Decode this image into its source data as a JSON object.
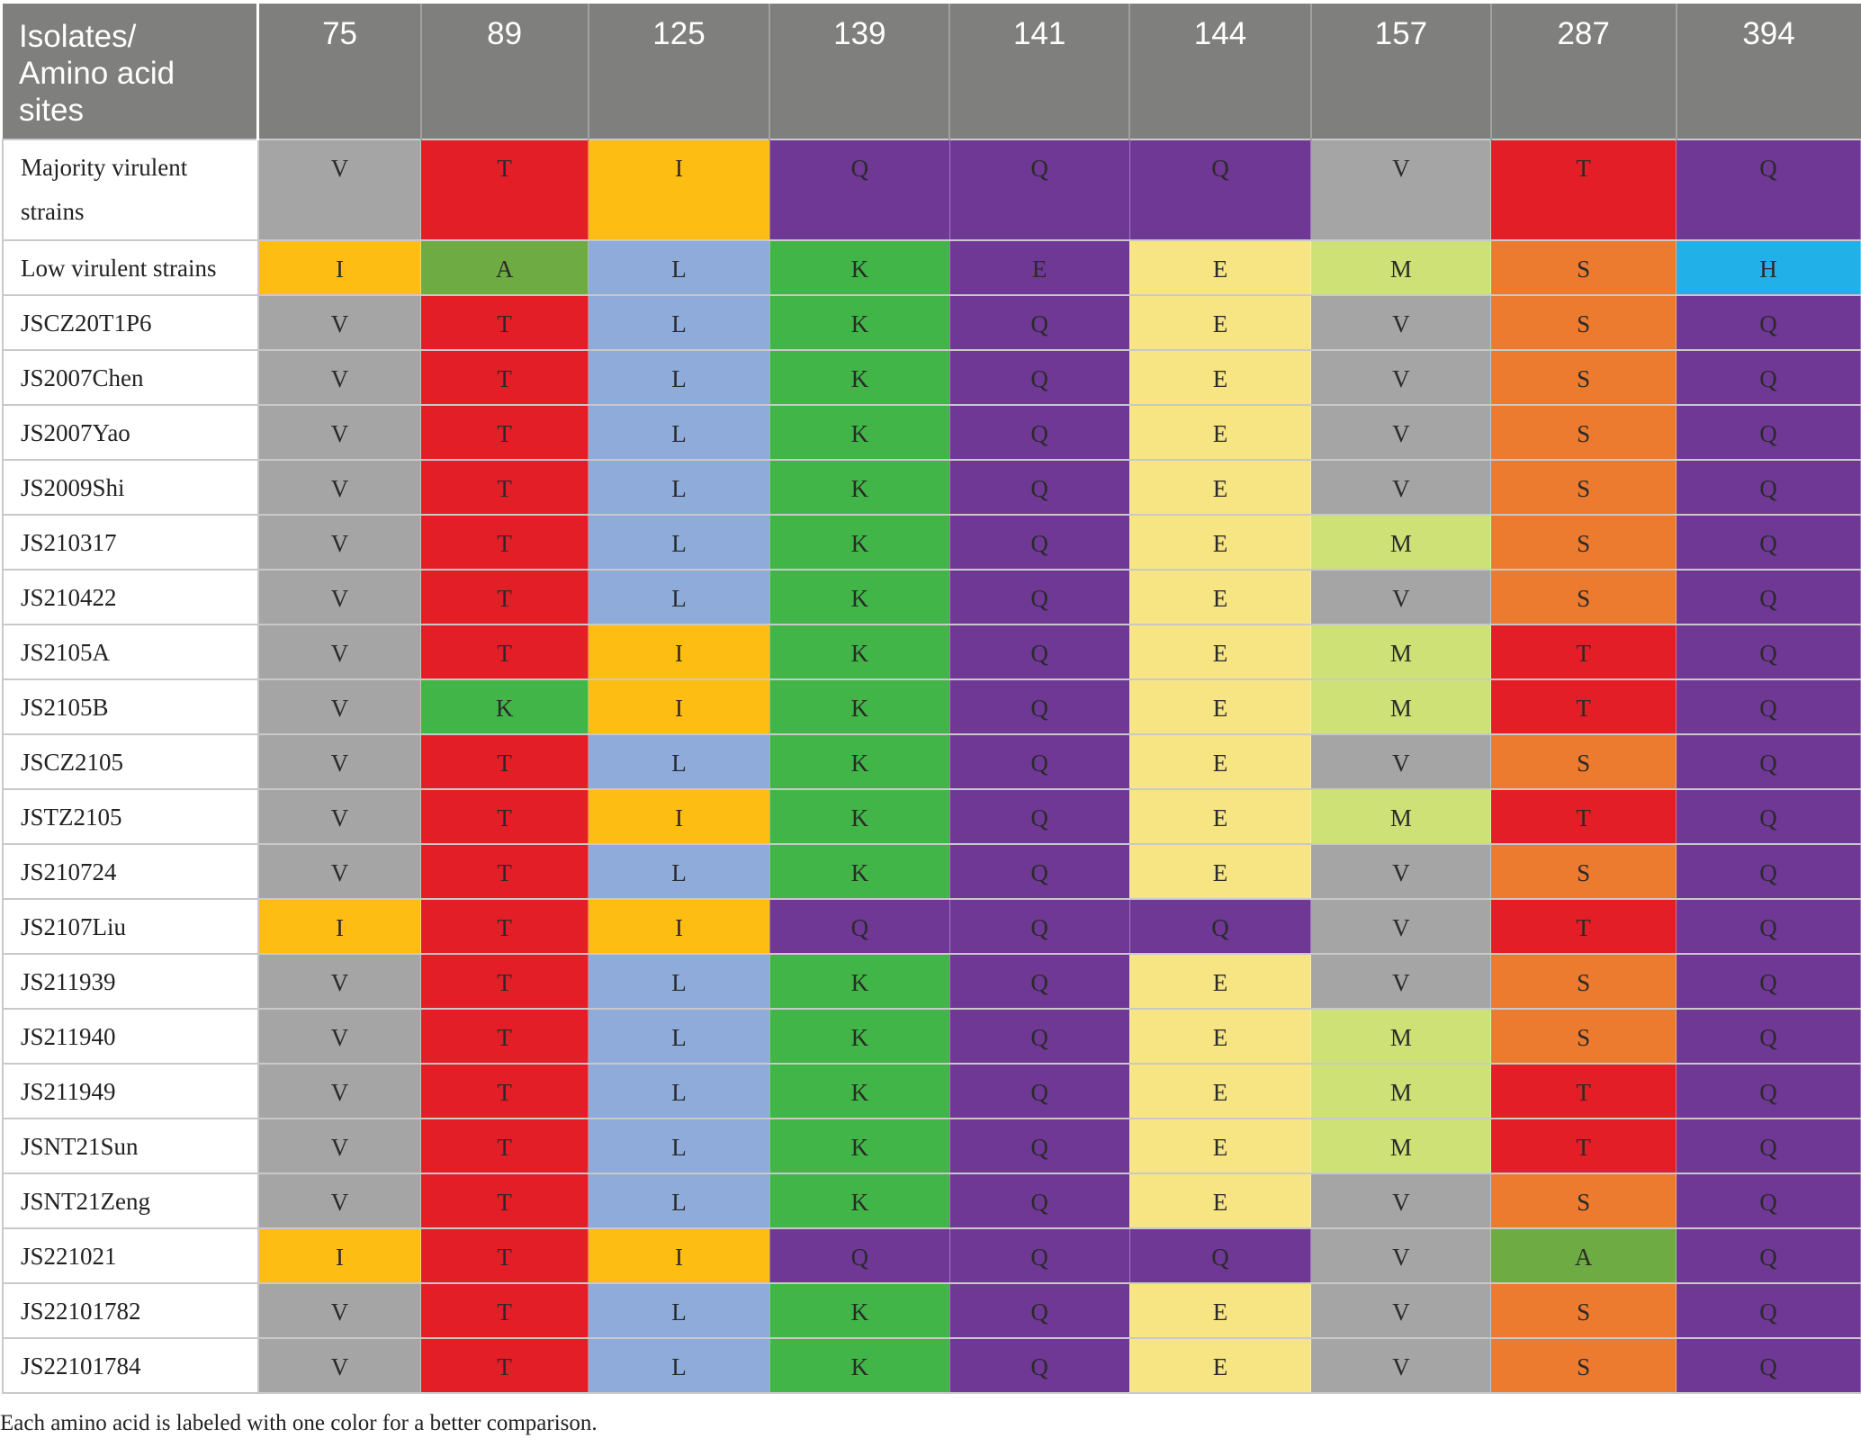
{
  "table": {
    "corner_header": [
      "Isolates/",
      "Amino acid",
      "sites"
    ],
    "sites": [
      "75",
      "89",
      "125",
      "139",
      "141",
      "144",
      "157",
      "287",
      "394"
    ],
    "colors": {
      "V": "#a5a5a5",
      "I": "#fdbd13",
      "T": "#e41e26",
      "A": "#6fab43",
      "K": "#41b548",
      "L": "#8eabd9",
      "Q": "#6f3895",
      "E": "#6f3895",
      "M": "#cee176",
      "S": "#ec7b30",
      "H": "#22b0e8",
      "E_pale": "#f7e583"
    },
    "rows": [
      {
        "name": "Majority virulent strains",
        "residues": [
          "V",
          "T",
          "I",
          "Q",
          "Q",
          "Q",
          "V",
          "T",
          "Q"
        ]
      },
      {
        "name": "Low virulent strains",
        "residues": [
          "I",
          "A",
          "L",
          "K",
          "E",
          "E",
          "M",
          "S",
          "H"
        ]
      },
      {
        "name": "JSCZ20T1P6",
        "residues": [
          "V",
          "T",
          "L",
          "K",
          "Q",
          "E",
          "V",
          "S",
          "Q"
        ]
      },
      {
        "name": "JS2007Chen",
        "residues": [
          "V",
          "T",
          "L",
          "K",
          "Q",
          "E",
          "V",
          "S",
          "Q"
        ]
      },
      {
        "name": "JS2007Yao",
        "residues": [
          "V",
          "T",
          "L",
          "K",
          "Q",
          "E",
          "V",
          "S",
          "Q"
        ]
      },
      {
        "name": "JS2009Shi",
        "residues": [
          "V",
          "T",
          "L",
          "K",
          "Q",
          "E",
          "V",
          "S",
          "Q"
        ]
      },
      {
        "name": "JS210317",
        "residues": [
          "V",
          "T",
          "L",
          "K",
          "Q",
          "E",
          "M",
          "S",
          "Q"
        ]
      },
      {
        "name": "JS210422",
        "residues": [
          "V",
          "T",
          "L",
          "K",
          "Q",
          "E",
          "V",
          "S",
          "Q"
        ]
      },
      {
        "name": "JS2105A",
        "residues": [
          "V",
          "T",
          "I",
          "K",
          "Q",
          "E",
          "M",
          "T",
          "Q"
        ]
      },
      {
        "name": "JS2105B",
        "residues": [
          "V",
          "K",
          "I",
          "K",
          "Q",
          "E",
          "M",
          "T",
          "Q"
        ]
      },
      {
        "name": "JSCZ2105",
        "residues": [
          "V",
          "T",
          "L",
          "K",
          "Q",
          "E",
          "V",
          "S",
          "Q"
        ]
      },
      {
        "name": "JSTZ2105",
        "residues": [
          "V",
          "T",
          "I",
          "K",
          "Q",
          "E",
          "M",
          "T",
          "Q"
        ]
      },
      {
        "name": "JS210724",
        "residues": [
          "V",
          "T",
          "L",
          "K",
          "Q",
          "E",
          "V",
          "S",
          "Q"
        ]
      },
      {
        "name": "JS2107Liu",
        "residues": [
          "I",
          "T",
          "I",
          "Q",
          "Q",
          "Q",
          "V",
          "T",
          "Q"
        ]
      },
      {
        "name": "JS211939",
        "residues": [
          "V",
          "T",
          "L",
          "K",
          "Q",
          "E",
          "V",
          "S",
          "Q"
        ]
      },
      {
        "name": "JS211940",
        "residues": [
          "V",
          "T",
          "L",
          "K",
          "Q",
          "E",
          "M",
          "S",
          "Q"
        ]
      },
      {
        "name": "JS211949",
        "residues": [
          "V",
          "T",
          "L",
          "K",
          "Q",
          "E",
          "M",
          "T",
          "Q"
        ]
      },
      {
        "name": "JSNT21Sun",
        "residues": [
          "V",
          "T",
          "L",
          "K",
          "Q",
          "E",
          "M",
          "T",
          "Q"
        ]
      },
      {
        "name": "JSNT21Zeng",
        "residues": [
          "V",
          "T",
          "L",
          "K",
          "Q",
          "E",
          "V",
          "S",
          "Q"
        ]
      },
      {
        "name": "JS221021",
        "residues": [
          "I",
          "T",
          "I",
          "Q",
          "Q",
          "Q",
          "V",
          "A",
          "Q"
        ]
      },
      {
        "name": "JS22101782",
        "residues": [
          "V",
          "T",
          "L",
          "K",
          "Q",
          "E",
          "V",
          "S",
          "Q"
        ]
      },
      {
        "name": "JS22101784",
        "residues": [
          "V",
          "T",
          "L",
          "K",
          "Q",
          "E",
          "V",
          "S",
          "Q"
        ]
      }
    ]
  },
  "footnote": "Each amino acid is labeled with one color for a better comparison."
}
